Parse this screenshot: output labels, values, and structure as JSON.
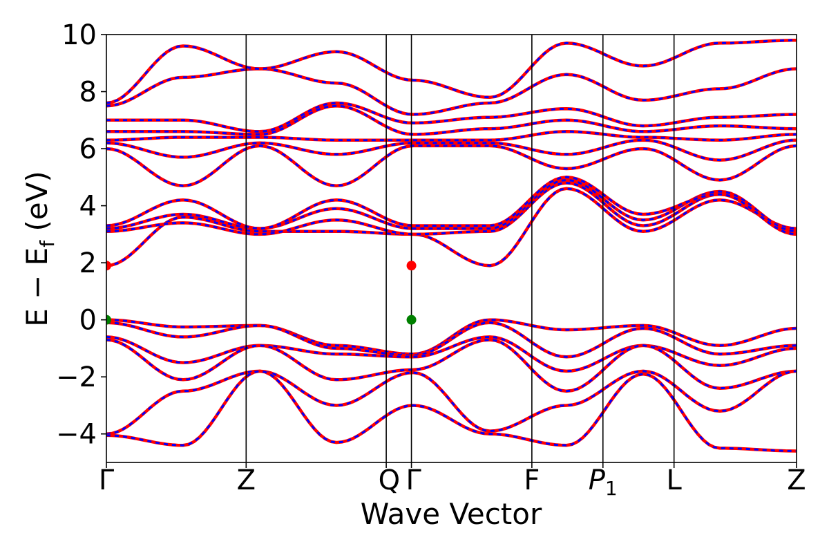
{
  "chart_data": {
    "type": "line",
    "title": "",
    "xlabel": "Wave Vector",
    "ylabel": {
      "main": "E − E",
      "sub": "f",
      "unit": " (eV)"
    },
    "ylim": [
      -5,
      10
    ],
    "yticks": [
      {
        "value": -4,
        "label": "−4"
      },
      {
        "value": -2,
        "label": "−2"
      },
      {
        "value": 0,
        "label": "0"
      },
      {
        "value": 2,
        "label": "2"
      },
      {
        "value": 4,
        "label": "4"
      },
      {
        "value": 6,
        "label": "6"
      },
      {
        "value": 8,
        "label": "8"
      },
      {
        "value": 10,
        "label": "10"
      }
    ],
    "kpath": [
      {
        "label": "Γ",
        "sub": "",
        "pos": 0.0
      },
      {
        "label": "Z",
        "sub": "",
        "pos": 0.2025
      },
      {
        "label": "Q",
        "sub": "",
        "pos": 0.4055
      },
      {
        "label": "Γ",
        "sub": "",
        "pos": 0.442
      },
      {
        "label": "F",
        "sub": "",
        "pos": 0.6165
      },
      {
        "label": "P",
        "sub": "1",
        "pos": 0.7195
      },
      {
        "label": "L",
        "sub": "",
        "pos": 0.8225
      },
      {
        "label": "Z",
        "sub": "",
        "pos": 1.0
      }
    ],
    "colors": {
      "band_main": "#ff0000",
      "band_overlay": "#0000ff",
      "vbm": "#008000",
      "cbm": "#ff0000",
      "kline": "#000000"
    },
    "series": [
      {
        "id": "v1",
        "values": [
          0.0,
          -0.25,
          -0.2,
          -0.9,
          -1.2,
          0.0,
          -0.35,
          -0.2,
          -0.9,
          -0.3
        ]
      },
      {
        "id": "v2",
        "values": [
          -0.1,
          -0.6,
          -0.2,
          -1.0,
          -1.25,
          -0.1,
          -1.3,
          -0.3,
          -1.2,
          -0.9
        ]
      },
      {
        "id": "v3",
        "values": [
          -0.6,
          -1.5,
          -0.9,
          -1.2,
          -1.3,
          -0.6,
          -1.8,
          -0.9,
          -1.6,
          -1.0
        ]
      },
      {
        "id": "v4",
        "values": [
          -0.7,
          -2.1,
          -0.9,
          -2.1,
          -1.75,
          -0.7,
          -2.5,
          -0.9,
          -2.4,
          -1.8
        ]
      },
      {
        "id": "v5",
        "values": [
          -4.0,
          -2.5,
          -1.8,
          -3.0,
          -1.85,
          -3.9,
          -3.0,
          -1.8,
          -3.2,
          -1.8
        ]
      },
      {
        "id": "v6",
        "values": [
          -4.05,
          -4.4,
          -1.8,
          -4.3,
          -3.0,
          -4.0,
          -4.4,
          -1.9,
          -4.5,
          -4.6
        ]
      },
      {
        "id": "c1",
        "values": [
          1.9,
          3.6,
          3.1,
          3.1,
          3.0,
          1.9,
          4.6,
          3.1,
          4.2,
          3.2
        ]
      },
      {
        "id": "c2",
        "values": [
          3.1,
          3.4,
          3.0,
          3.5,
          3.0,
          3.1,
          4.8,
          3.3,
          4.4,
          3.0
        ]
      },
      {
        "id": "c3",
        "values": [
          3.2,
          3.7,
          3.2,
          3.9,
          3.2,
          3.2,
          4.9,
          3.5,
          4.5,
          3.1
        ]
      },
      {
        "id": "c4",
        "values": [
          3.3,
          4.2,
          3.2,
          4.2,
          3.3,
          3.3,
          5.0,
          3.7,
          4.4,
          3.0
        ]
      },
      {
        "id": "c5",
        "values": [
          6.0,
          4.7,
          6.1,
          4.7,
          6.1,
          6.1,
          5.3,
          6.0,
          4.9,
          6.1
        ]
      },
      {
        "id": "c6",
        "values": [
          6.2,
          5.7,
          6.2,
          5.8,
          6.2,
          6.2,
          5.8,
          6.3,
          5.6,
          6.3
        ]
      },
      {
        "id": "c7",
        "values": [
          6.3,
          6.4,
          6.4,
          6.3,
          6.3,
          6.3,
          6.6,
          6.4,
          6.3,
          6.5
        ]
      },
      {
        "id": "c8",
        "values": [
          6.6,
          6.6,
          6.5,
          7.5,
          6.5,
          6.7,
          7.0,
          6.6,
          6.8,
          6.7
        ]
      },
      {
        "id": "c9",
        "values": [
          7.0,
          7.0,
          6.6,
          7.6,
          6.9,
          7.1,
          7.4,
          6.8,
          7.1,
          7.2
        ]
      },
      {
        "id": "c10",
        "values": [
          7.5,
          8.5,
          8.8,
          8.3,
          7.2,
          7.6,
          8.6,
          7.7,
          8.1,
          8.8
        ]
      },
      {
        "id": "c11",
        "values": [
          7.6,
          9.6,
          8.8,
          9.4,
          8.4,
          7.8,
          9.7,
          8.9,
          9.7,
          9.8
        ]
      }
    ],
    "vbm_markers": [
      0.0,
      0.442
    ],
    "cbm_markers": [
      0.0,
      0.442
    ]
  }
}
